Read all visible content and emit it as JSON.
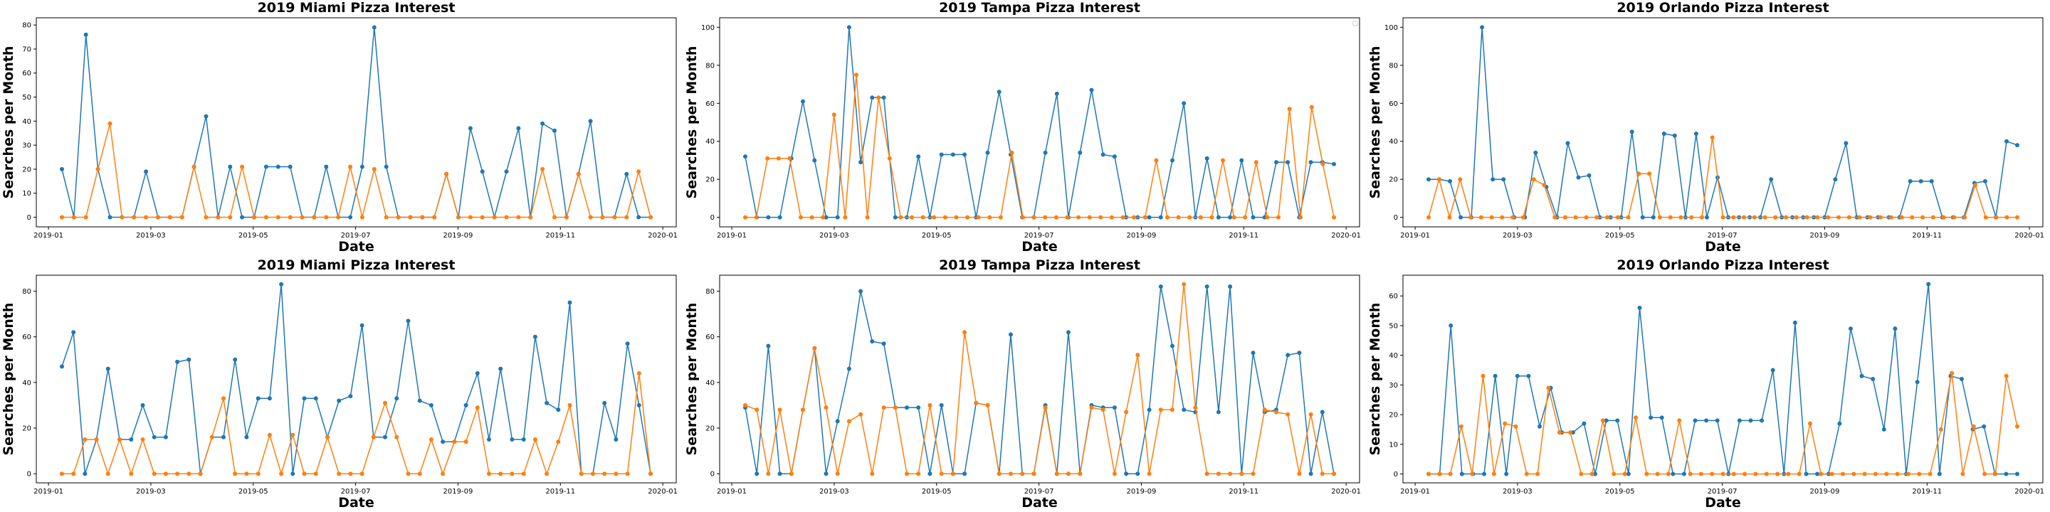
{
  "chart_data": [
    {
      "type": "line",
      "title": "2019 Miami Pizza Interest",
      "xlabel": "Date",
      "ylabel": "Searches per Month",
      "x_tick_labels": [
        "2019-01",
        "2019-03",
        "2019-05",
        "2019-07",
        "2019-09",
        "2019-11",
        "2020-01"
      ],
      "y_ticks": [
        0,
        10,
        20,
        30,
        40,
        50,
        60,
        70,
        80
      ],
      "ylim": [
        -4,
        83
      ],
      "grid": false,
      "legend": null,
      "series": [
        {
          "color": "#1f77b4",
          "values": [
            20,
            0,
            76,
            20,
            0,
            0,
            0,
            19,
            0,
            0,
            0,
            21,
            42,
            0,
            21,
            0,
            0,
            21,
            21,
            21,
            0,
            0,
            21,
            0,
            0,
            21,
            79,
            21,
            0,
            0,
            0,
            0,
            18,
            0,
            37,
            19,
            0,
            19,
            37,
            0,
            39,
            36,
            0,
            18,
            40,
            0,
            0,
            18,
            0,
            0
          ]
        },
        {
          "color": "#ff7f0e",
          "values": [
            0,
            0,
            0,
            20,
            39,
            0,
            0,
            0,
            0,
            0,
            0,
            21,
            0,
            0,
            0,
            21,
            0,
            0,
            0,
            0,
            0,
            0,
            0,
            0,
            21,
            0,
            20,
            0,
            0,
            0,
            0,
            0,
            18,
            0,
            0,
            0,
            0,
            0,
            0,
            0,
            20,
            0,
            0,
            18,
            0,
            0,
            0,
            0,
            19,
            0
          ]
        }
      ]
    },
    {
      "type": "line",
      "title": "2019 Tampa Pizza Interest",
      "xlabel": "Date",
      "ylabel": "Searches per Month",
      "x_tick_labels": [
        "2019-01",
        "2019-03",
        "2019-05",
        "2019-07",
        "2019-09",
        "2019-11",
        "2020-01"
      ],
      "y_ticks": [
        0,
        20,
        40,
        60,
        80,
        100
      ],
      "ylim": [
        -5,
        105
      ],
      "grid": false,
      "legend": "top-right (empty)",
      "series": [
        {
          "color": "#1f77b4",
          "values": [
            32,
            0,
            0,
            0,
            31,
            61,
            30,
            0,
            0,
            100,
            29,
            63,
            63,
            0,
            0,
            32,
            0,
            33,
            33,
            33,
            0,
            34,
            66,
            33,
            0,
            0,
            34,
            65,
            0,
            34,
            67,
            33,
            32,
            0,
            0,
            0,
            0,
            30,
            60,
            0,
            31,
            0,
            0,
            30,
            0,
            0,
            29,
            29,
            0,
            29,
            29,
            28
          ]
        },
        {
          "color": "#ff7f0e",
          "values": [
            0,
            0,
            31,
            31,
            31,
            0,
            0,
            0,
            54,
            0,
            75,
            0,
            63,
            31,
            0,
            0,
            0,
            0,
            0,
            0,
            0,
            0,
            0,
            0,
            34,
            0,
            0,
            0,
            0,
            0,
            0,
            0,
            0,
            0,
            0,
            0,
            0,
            30,
            0,
            0,
            0,
            0,
            0,
            30,
            0,
            0,
            29,
            0,
            0,
            57,
            0,
            58,
            28,
            0
          ]
        }
      ]
    },
    {
      "type": "line",
      "title": "2019 Orlando Pizza Interest",
      "xlabel": "Date",
      "ylabel": "Searches per Month",
      "x_tick_labels": [
        "2019-01",
        "2019-03",
        "2019-05",
        "2019-07",
        "2019-09",
        "2019-11",
        "2020-01"
      ],
      "y_ticks": [
        0,
        20,
        40,
        60,
        80,
        100
      ],
      "ylim": [
        -5,
        105
      ],
      "grid": false,
      "legend": null,
      "series": [
        {
          "color": "#1f77b4",
          "values": [
            20,
            20,
            19,
            0,
            0,
            100,
            20,
            20,
            0,
            0,
            34,
            16,
            0,
            39,
            21,
            22,
            0,
            0,
            0,
            45,
            0,
            0,
            44,
            43,
            0,
            44,
            0,
            21,
            0,
            0,
            0,
            0,
            20,
            0,
            0,
            0,
            0,
            0,
            20,
            39,
            0,
            0,
            0,
            0,
            0,
            19,
            19,
            19,
            0,
            0,
            0,
            18,
            19,
            0,
            40,
            38
          ]
        },
        {
          "color": "#ff7f0e",
          "values": [
            0,
            20,
            0,
            20,
            0,
            0,
            0,
            0,
            0,
            0,
            20,
            17,
            0,
            0,
            0,
            0,
            0,
            0,
            0,
            0,
            23,
            23,
            0,
            0,
            0,
            0,
            0,
            42,
            0,
            0,
            0,
            0,
            0,
            0,
            0,
            0,
            0,
            0,
            0,
            0,
            0,
            0,
            0,
            0,
            0,
            0,
            0,
            0,
            0,
            0,
            0,
            0,
            17,
            0,
            0,
            0,
            0
          ]
        }
      ]
    },
    {
      "type": "line",
      "title": "2019 Miami Pizza Interest",
      "xlabel": "Date",
      "ylabel": "Searches per Month",
      "x_tick_labels": [
        "2019-01",
        "2019-03",
        "2019-05",
        "2019-07",
        "2019-09",
        "2019-11",
        "2020-01"
      ],
      "y_ticks": [
        0,
        20,
        40,
        60,
        80
      ],
      "ylim": [
        -4,
        87
      ],
      "grid": false,
      "legend": null,
      "series": [
        {
          "color": "#1f77b4",
          "values": [
            47,
            62,
            0,
            15,
            46,
            15,
            15,
            30,
            16,
            16,
            49,
            50,
            0,
            16,
            16,
            50,
            16,
            33,
            33,
            83,
            0,
            33,
            33,
            16,
            32,
            34,
            65,
            16,
            16,
            33,
            67,
            32,
            30,
            14,
            14,
            30,
            44,
            15,
            46,
            15,
            15,
            60,
            31,
            28,
            75,
            0,
            0,
            31,
            15,
            57,
            30,
            0
          ]
        },
        {
          "color": "#ff7f0e",
          "values": [
            0,
            0,
            15,
            15,
            0,
            15,
            0,
            15,
            0,
            0,
            0,
            0,
            0,
            16,
            33,
            0,
            0,
            0,
            17,
            0,
            17,
            0,
            0,
            16,
            0,
            0,
            0,
            16,
            31,
            16,
            0,
            0,
            15,
            0,
            14,
            14,
            29,
            0,
            0,
            0,
            0,
            15,
            0,
            14,
            30,
            0,
            0,
            0,
            0,
            0,
            44,
            0
          ]
        }
      ]
    },
    {
      "type": "line",
      "title": "2019 Tampa Pizza Interest",
      "xlabel": "Date",
      "ylabel": "Searches per Month",
      "x_tick_labels": [
        "2019-01",
        "2019-03",
        "2019-05",
        "2019-07",
        "2019-09",
        "2019-11",
        "2020-01"
      ],
      "y_ticks": [
        0,
        20,
        40,
        60,
        80
      ],
      "ylim": [
        -4,
        87
      ],
      "grid": false,
      "legend": null,
      "series": [
        {
          "color": "#1f77b4",
          "values": [
            29,
            0,
            56,
            0,
            0,
            28,
            55,
            0,
            23,
            46,
            80,
            58,
            57,
            29,
            29,
            29,
            0,
            30,
            0,
            0,
            31,
            30,
            0,
            61,
            0,
            0,
            30,
            0,
            62,
            0,
            30,
            29,
            29,
            0,
            0,
            28,
            82,
            56,
            28,
            27,
            82,
            27,
            82,
            0,
            53,
            27,
            28,
            52,
            53,
            0,
            27,
            0
          ]
        },
        {
          "color": "#ff7f0e",
          "values": [
            30,
            28,
            0,
            28,
            0,
            28,
            55,
            29,
            0,
            23,
            26,
            0,
            29,
            29,
            0,
            0,
            30,
            0,
            0,
            62,
            31,
            30,
            0,
            0,
            0,
            0,
            29,
            0,
            0,
            0,
            29,
            28,
            0,
            27,
            52,
            0,
            28,
            28,
            83,
            29,
            0,
            0,
            0,
            0,
            0,
            28,
            27,
            26,
            0,
            26,
            0,
            0
          ]
        }
      ]
    },
    {
      "type": "line",
      "title": "2019 Orlando Pizza Interest",
      "xlabel": "Date",
      "ylabel": "Searches per Month",
      "x_tick_labels": [
        "2019-01",
        "2019-03",
        "2019-05",
        "2019-07",
        "2019-09",
        "2019-11",
        "2020-01"
      ],
      "y_ticks": [
        0,
        10,
        20,
        30,
        40,
        50,
        60
      ],
      "ylim": [
        -3,
        67
      ],
      "grid": false,
      "legend": null,
      "series": [
        {
          "color": "#1f77b4",
          "values": [
            0,
            0,
            50,
            0,
            0,
            0,
            33,
            0,
            33,
            33,
            16,
            29,
            14,
            14,
            17,
            0,
            18,
            18,
            0,
            56,
            19,
            19,
            0,
            0,
            18,
            18,
            18,
            0,
            18,
            18,
            18,
            35,
            0,
            51,
            0,
            0,
            0,
            17,
            49,
            33,
            32,
            15,
            49,
            0,
            31,
            64,
            0,
            33,
            32,
            15,
            16,
            0,
            0,
            0
          ]
        },
        {
          "color": "#ff7f0e",
          "values": [
            0,
            0,
            0,
            16,
            0,
            33,
            0,
            17,
            16,
            0,
            0,
            29,
            14,
            14,
            0,
            0,
            18,
            0,
            0,
            19,
            0,
            0,
            0,
            18,
            0,
            0,
            0,
            0,
            0,
            0,
            0,
            0,
            0,
            0,
            0,
            17,
            0,
            0,
            0,
            0,
            0,
            0,
            0,
            0,
            0,
            0,
            0,
            15,
            34,
            0,
            16,
            0,
            0,
            33,
            16
          ]
        }
      ]
    }
  ]
}
